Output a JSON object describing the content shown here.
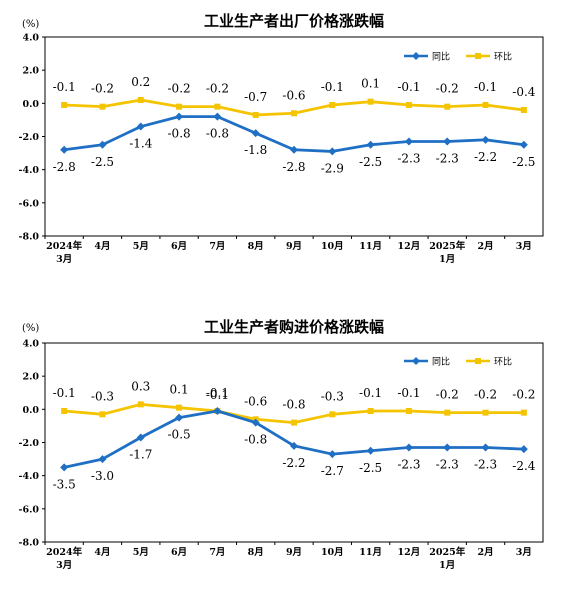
{
  "chart_data": [
    {
      "type": "line",
      "title": "工业生产者出厂价格涨跌幅",
      "unit_label": "(%)",
      "ylim": [
        -8.0,
        4.0
      ],
      "y_ticks": [
        "4.0",
        "2.0",
        "0.0",
        "-2.0",
        "-4.0",
        "-6.0",
        "-8.0"
      ],
      "categories": [
        [
          "2024年",
          "3月"
        ],
        [
          "4月"
        ],
        [
          "5月"
        ],
        [
          "6月"
        ],
        [
          "7月"
        ],
        [
          "8月"
        ],
        [
          "9月"
        ],
        [
          "10月"
        ],
        [
          "11月"
        ],
        [
          "12月"
        ],
        [
          "2025年",
          "1月"
        ],
        [
          "2月"
        ],
        [
          "3月"
        ]
      ],
      "legend_placement": "top-right",
      "grid": false,
      "series": [
        {
          "name": "同比",
          "color": "#1f6fc5",
          "values": [
            -2.8,
            -2.5,
            -1.4,
            -0.8,
            -0.8,
            -1.8,
            -2.8,
            -2.9,
            -2.5,
            -2.3,
            -2.3,
            -2.2,
            -2.5
          ],
          "labels": [
            "-2.8",
            "-2.5",
            "-1.4",
            "-0.8",
            "-0.8",
            "-1.8",
            "-2.8",
            "-2.9",
            "-2.5",
            "-2.3",
            "-2.3",
            "-2.2",
            "-2.5"
          ]
        },
        {
          "name": "环比",
          "color": "#f5c400",
          "values": [
            -0.1,
            -0.2,
            0.2,
            -0.2,
            -0.2,
            -0.7,
            -0.6,
            -0.1,
            0.1,
            -0.1,
            -0.2,
            -0.1,
            -0.4
          ],
          "labels": [
            "-0.1",
            "-0.2",
            "0.2",
            "-0.2",
            "-0.2",
            "-0.7",
            "-0.6",
            "-0.1",
            "0.1",
            "-0.1",
            "-0.2",
            "-0.1",
            "-0.4"
          ]
        }
      ]
    },
    {
      "type": "line",
      "title": "工业生产者购进价格涨跌幅",
      "unit_label": "(%)",
      "ylim": [
        -8.0,
        4.0
      ],
      "y_ticks": [
        "4.0",
        "2.0",
        "0.0",
        "-2.0",
        "-4.0",
        "-6.0",
        "-8.0"
      ],
      "categories": [
        [
          "2024年",
          "3月"
        ],
        [
          "4月"
        ],
        [
          "5月"
        ],
        [
          "6月"
        ],
        [
          "7月"
        ],
        [
          "8月"
        ],
        [
          "9月"
        ],
        [
          "10月"
        ],
        [
          "11月"
        ],
        [
          "12月"
        ],
        [
          "2025年",
          "1月"
        ],
        [
          "2月"
        ],
        [
          "3月"
        ]
      ],
      "legend_placement": "top-right",
      "grid": false,
      "series": [
        {
          "name": "同比",
          "color": "#1f6fc5",
          "values": [
            -3.5,
            -3.0,
            -1.7,
            -0.5,
            -0.1,
            -0.8,
            -2.2,
            -2.7,
            -2.5,
            -2.3,
            -2.3,
            -2.3,
            -2.4
          ],
          "labels": [
            "-3.5",
            "-3.0",
            "-1.7",
            "-0.5",
            "-0.1",
            "-0.8",
            "-2.2",
            "-2.7",
            "-2.5",
            "-2.3",
            "-2.3",
            "-2.3",
            "-2.4"
          ]
        },
        {
          "name": "环比",
          "color": "#f5c400",
          "values": [
            -0.1,
            -0.3,
            0.3,
            0.1,
            -0.1,
            -0.6,
            -0.8,
            -0.3,
            -0.1,
            -0.1,
            -0.2,
            -0.2,
            -0.2
          ],
          "labels": [
            "-0.1",
            "-0.3",
            "0.3",
            "0.1",
            "-0.1",
            "-0.6",
            "-0.8",
            "-0.3",
            "-0.1",
            "-0.1",
            "-0.2",
            "-0.2",
            "-0.2"
          ]
        }
      ]
    }
  ]
}
